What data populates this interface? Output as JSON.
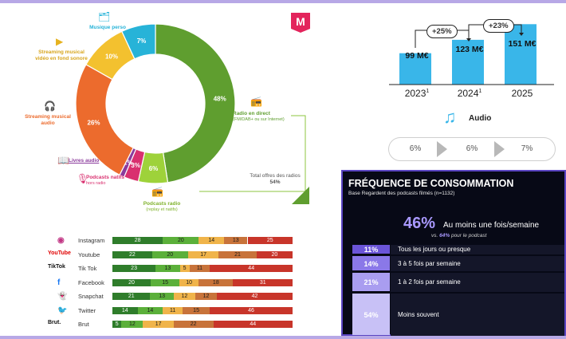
{
  "colors": {
    "radio": "#5f9e2f",
    "podcasts_radio": "#9ed23a",
    "livres_audio": "#8b3b9c",
    "podcasts_natifs": "#d9306f",
    "streaming_audio": "#ec6b2d",
    "streaming_video": "#f3c12f",
    "musique_perso": "#27b3d8",
    "freq_accent": "#a999ff",
    "bar_blue": "#39b6e9",
    "soc_c1": "#2f7d2b",
    "soc_c2": "#5bb03a",
    "soc_c3": "#f0b44a",
    "soc_c4": "#c8733a",
    "soc_c5": "#c8352a"
  },
  "chart_data": [
    {
      "type": "pie",
      "variant": "donut",
      "slices": [
        {
          "name": "Radio en direct",
          "value": 48,
          "label": "48%",
          "subtitle": "(FM/DAB+ ou sur Internet)"
        },
        {
          "name": "Podcasts radio",
          "value": 6,
          "label": "6%",
          "subtitle": "(replay et natifs)"
        },
        {
          "name": "Podcasts natifs",
          "value": 3,
          "label": "3%",
          "subtitle": "hors radio"
        },
        {
          "name": "Livres audio",
          "value": 1,
          "label": "1%",
          "subtitle": ""
        },
        {
          "name": "Streaming musical audio",
          "value": 26,
          "label": "26%",
          "subtitle": ""
        },
        {
          "name": "Streaming musical vidéo en fond sonore",
          "value": 10,
          "label": "10%",
          "subtitle": ""
        },
        {
          "name": "Musique perso",
          "value": 7,
          "label": "7%",
          "subtitle": ""
        }
      ],
      "bracket_label": "Total offres des radios",
      "bracket_value": "54%"
    },
    {
      "type": "bar",
      "categories": [
        "2023",
        "2024",
        "2025"
      ],
      "footnotes": [
        "1",
        "1",
        ""
      ],
      "values": [
        99,
        123,
        151
      ],
      "value_labels": [
        "99 M€",
        "123 M€",
        "151 M€"
      ],
      "growth": [
        "+25%",
        "+23%"
      ],
      "ylim": [
        0,
        200
      ]
    },
    {
      "type": "table",
      "title": "Audio",
      "values": [
        "6%",
        "6%",
        "7%"
      ]
    },
    {
      "type": "bar",
      "orientation": "horizontal",
      "title": "FRÉQUENCE DE CONSOMMATION",
      "subtitle": "Base Regardent des podcasts filmés (n=1132)",
      "headline_value": "46%",
      "headline_label": "Au moins une fois/semaine",
      "headline_note_prefix": "vs.",
      "headline_note_value": "64%",
      "headline_note_suffix": "pour le podcast",
      "categories": [
        "Tous les jours ou presque",
        "3 à 5 fois par semaine",
        "1 à 2 fois par semaine",
        "Moins souvent"
      ],
      "values": [
        11,
        14,
        21,
        54
      ],
      "value_labels": [
        "11%",
        "14%",
        "21%",
        "54%"
      ]
    },
    {
      "type": "bar",
      "orientation": "horizontal",
      "stacked": true,
      "categories": [
        "Instagram",
        "Youtube",
        "Tik Tok",
        "Facebook",
        "Snapchat",
        "Twitter",
        "Brut"
      ],
      "series": [
        {
          "values": [
            28,
            22,
            23,
            20,
            21,
            14,
            5
          ]
        },
        {
          "values": [
            20,
            20,
            13,
            15,
            13,
            14,
            12
          ]
        },
        {
          "values": [
            14,
            17,
            5,
            10,
            12,
            11,
            17
          ]
        },
        {
          "values": [
            13,
            21,
            11,
            18,
            12,
            15,
            22
          ]
        },
        {
          "values": [
            25,
            20,
            44,
            31,
            42,
            46,
            44
          ]
        }
      ],
      "xlim": [
        0,
        100
      ]
    }
  ],
  "logos": {
    "brand": "M",
    "youtube": "YouTube",
    "tiktok": "TikTok",
    "brut": "Brut."
  },
  "icons": [
    "music-folder-icon",
    "video-icon",
    "headphones-icon",
    "radio-icon",
    "book-icon",
    "microphone-icon",
    "podcast-radio-icon",
    "music-note-icon",
    "instagram-icon",
    "youtube-icon",
    "tiktok-icon",
    "facebook-icon",
    "snapchat-icon",
    "twitter-icon",
    "brut-icon"
  ]
}
